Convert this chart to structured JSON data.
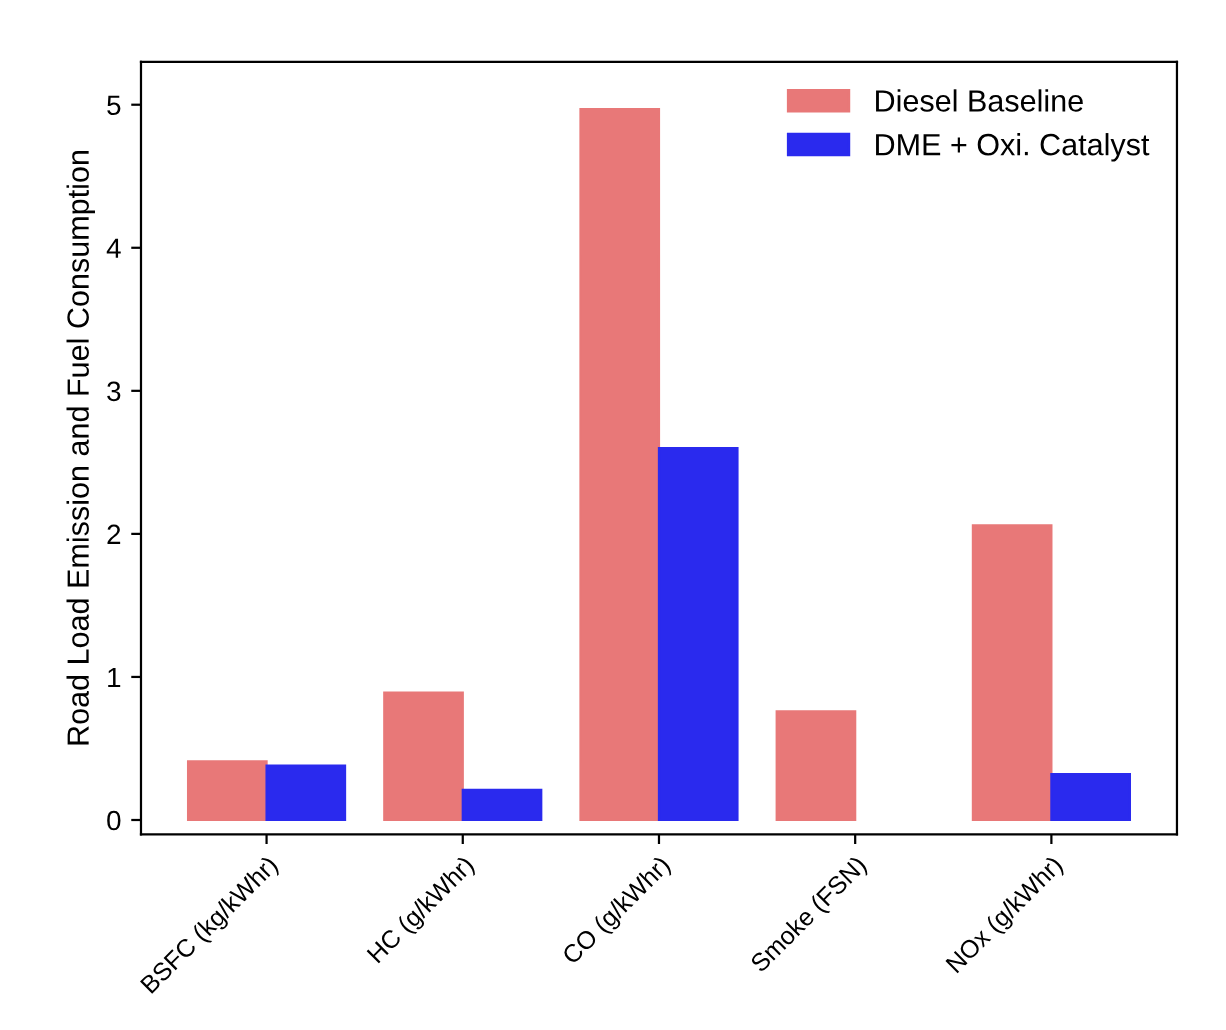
{
  "chart_data": {
    "type": "bar",
    "ylabel": "Road Load Emission and Fuel Consumption",
    "categories": [
      "BSFC (kg/kWhr)",
      "HC (g/kWhr)",
      "CO (g/kWhr)",
      "Smoke (FSN)",
      "NOx (g/kWhr)"
    ],
    "series": [
      {
        "name": "Diesel Baseline",
        "color": "#e87878",
        "values": [
          0.41,
          0.89,
          4.97,
          0.76,
          2.06
        ]
      },
      {
        "name": "DME + Oxi. Catalyst",
        "color": "#2a2aee",
        "values": [
          0.38,
          0.21,
          2.6,
          null,
          0.32
        ]
      }
    ],
    "ylim": [
      -0.1,
      5.3
    ],
    "yticks": [
      0,
      1,
      2,
      3,
      4,
      5
    ],
    "grid": false,
    "legend": "top right"
  }
}
